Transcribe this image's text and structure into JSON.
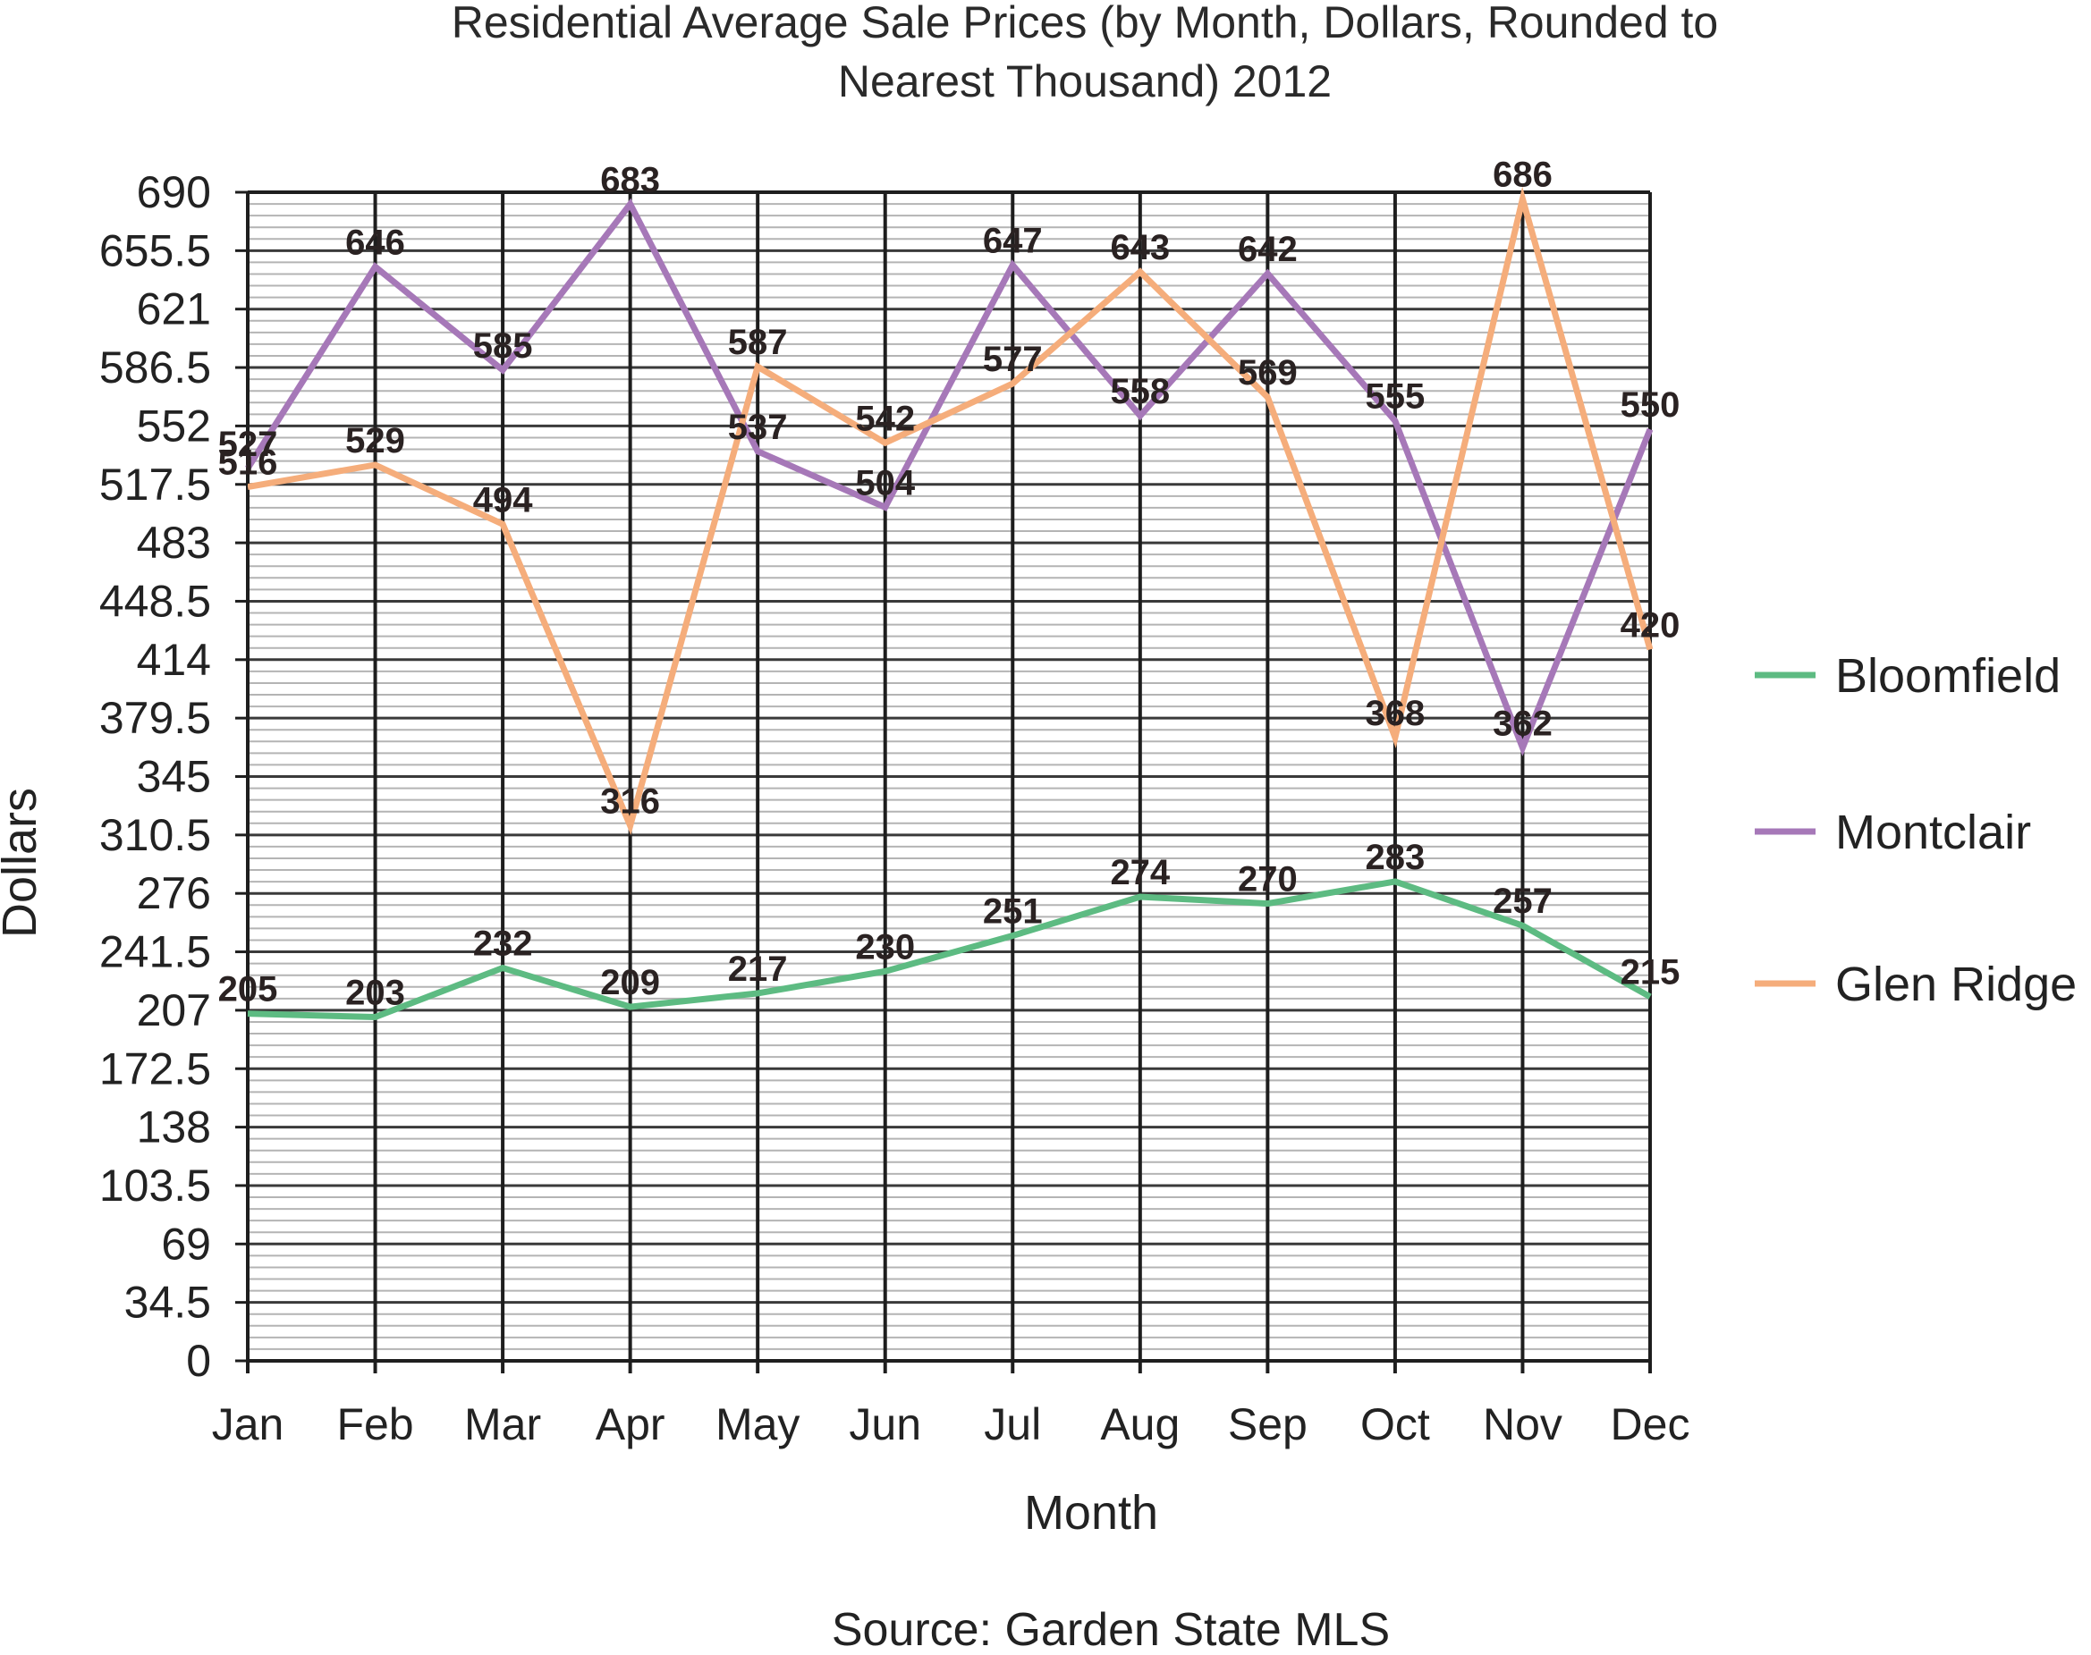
{
  "chart_data": {
    "type": "line",
    "title_line1": "Residential Average Sale Prices (by Month, Dollars, Rounded to",
    "title_line2": "Nearest Thousand) 2012",
    "xlabel": "Month",
    "ylabel": "Dollars",
    "source": "Source: Garden State MLS",
    "categories": [
      "Jan",
      "Feb",
      "Mar",
      "Apr",
      "May",
      "Jun",
      "Jul",
      "Aug",
      "Sep",
      "Oct",
      "Nov",
      "Dec"
    ],
    "ylim": [
      0,
      690
    ],
    "yticks": [
      "0",
      "34.5",
      "69",
      "103.5",
      "138",
      "172.5",
      "207",
      "241.5",
      "276",
      "310.5",
      "345",
      "379.5",
      "414",
      "448.5",
      "483",
      "517.5",
      "552",
      "586.5",
      "621",
      "655.5",
      "690"
    ],
    "grid": true,
    "legend_position": "right",
    "series": [
      {
        "name": "Bloomfield",
        "color": "#5dbb82",
        "values": [
          205,
          203,
          232,
          209,
          217,
          230,
          251,
          274,
          270,
          283,
          257,
          215
        ],
        "labels": [
          "205",
          "203",
          "232",
          "209",
          "217",
          "230",
          "251",
          "274",
          "270",
          "283",
          "257",
          "215"
        ]
      },
      {
        "name": "Montclair",
        "color": "#a678b8",
        "values": [
          527,
          646,
          585,
          683,
          537,
          504,
          647,
          558,
          642,
          555,
          362,
          550
        ],
        "labels": [
          "527",
          "646",
          "585",
          "683",
          "537",
          "504",
          "647",
          "558",
          "642",
          "555",
          "362",
          "550"
        ]
      },
      {
        "name": "Glen Ridge",
        "color": "#f5ad7b",
        "values": [
          516,
          529,
          494,
          316,
          587,
          542,
          577,
          643,
          569,
          368,
          686,
          420
        ],
        "labels": [
          "516",
          "529",
          "494",
          "316",
          "587",
          "542",
          "577",
          "643",
          "569",
          "368",
          "686",
          "420"
        ]
      }
    ]
  }
}
